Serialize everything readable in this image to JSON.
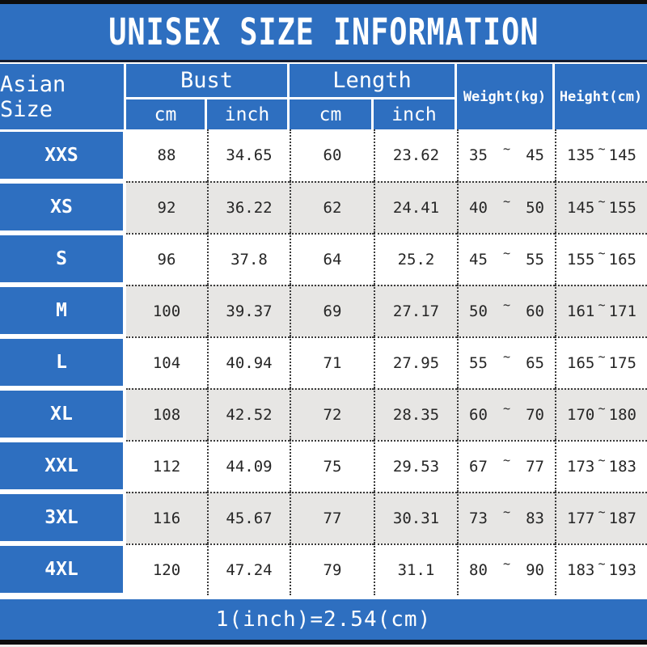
{
  "title": "UNISEX SIZE INFORMATION",
  "header": {
    "corner": "Asian Size",
    "bust": "Bust",
    "length": "Length",
    "unit_cm": "cm",
    "unit_inch": "inch",
    "weight": "Weight(kg)",
    "height": "Height(cm)"
  },
  "sym": {
    "tilde": "~"
  },
  "rows": [
    {
      "size": "XXS",
      "bust_cm": "88",
      "bust_inch": "34.65",
      "length_cm": "60",
      "length_inch": "23.62",
      "weight_min": "35",
      "weight_max": "45",
      "height_min": "135",
      "height_max": "145"
    },
    {
      "size": "XS",
      "bust_cm": "92",
      "bust_inch": "36.22",
      "length_cm": "62",
      "length_inch": "24.41",
      "weight_min": "40",
      "weight_max": "50",
      "height_min": "145",
      "height_max": "155"
    },
    {
      "size": "S",
      "bust_cm": "96",
      "bust_inch": "37.8",
      "length_cm": "64",
      "length_inch": "25.2",
      "weight_min": "45",
      "weight_max": "55",
      "height_min": "155",
      "height_max": "165"
    },
    {
      "size": "M",
      "bust_cm": "100",
      "bust_inch": "39.37",
      "length_cm": "69",
      "length_inch": "27.17",
      "weight_min": "50",
      "weight_max": "60",
      "height_min": "161",
      "height_max": "171"
    },
    {
      "size": "L",
      "bust_cm": "104",
      "bust_inch": "40.94",
      "length_cm": "71",
      "length_inch": "27.95",
      "weight_min": "55",
      "weight_max": "65",
      "height_min": "165",
      "height_max": "175"
    },
    {
      "size": "XL",
      "bust_cm": "108",
      "bust_inch": "42.52",
      "length_cm": "72",
      "length_inch": "28.35",
      "weight_min": "60",
      "weight_max": "70",
      "height_min": "170",
      "height_max": "180"
    },
    {
      "size": "XXL",
      "bust_cm": "112",
      "bust_inch": "44.09",
      "length_cm": "75",
      "length_inch": "29.53",
      "weight_min": "67",
      "weight_max": "77",
      "height_min": "173",
      "height_max": "183"
    },
    {
      "size": "3XL",
      "bust_cm": "116",
      "bust_inch": "45.67",
      "length_cm": "77",
      "length_inch": "30.31",
      "weight_min": "73",
      "weight_max": "83",
      "height_min": "177",
      "height_max": "187"
    },
    {
      "size": "4XL",
      "bust_cm": "120",
      "bust_inch": "47.24",
      "length_cm": "79",
      "length_inch": "31.1",
      "weight_min": "80",
      "weight_max": "90",
      "height_min": "183",
      "height_max": "193"
    }
  ],
  "footer_note": "1(inch)=2.54(cm)",
  "colors": {
    "blue": "#2e6fc0",
    "alt_row": "#e7e6e4",
    "top_bottom_bar": "#0d0d0d",
    "dotted_border": "#3a3a3a",
    "text_dark": "#262626",
    "text_light": "#ffffff"
  },
  "chart_data": {
    "type": "table",
    "title": "UNISEX SIZE INFORMATION",
    "columns": [
      "Asian Size",
      "Bust cm",
      "Bust inch",
      "Length cm",
      "Length inch",
      "Weight(kg)",
      "Height(cm)"
    ],
    "rows": [
      [
        "XXS",
        88,
        34.65,
        60,
        23.62,
        "35~45",
        "135~145"
      ],
      [
        "XS",
        92,
        36.22,
        62,
        24.41,
        "40~50",
        "145~155"
      ],
      [
        "S",
        96,
        37.8,
        64,
        25.2,
        "45~55",
        "155~165"
      ],
      [
        "M",
        100,
        39.37,
        69,
        27.17,
        "50~60",
        "161~171"
      ],
      [
        "L",
        104,
        40.94,
        71,
        27.95,
        "55~65",
        "165~175"
      ],
      [
        "XL",
        108,
        42.52,
        72,
        28.35,
        "60~70",
        "170~180"
      ],
      [
        "XXL",
        112,
        44.09,
        75,
        29.53,
        "67~77",
        "173~183"
      ],
      [
        "3XL",
        116,
        45.67,
        77,
        30.31,
        "73~83",
        "177~187"
      ],
      [
        "4XL",
        120,
        47.24,
        79,
        31.1,
        "80~90",
        "183~193"
      ]
    ],
    "note": "1(inch)=2.54(cm)"
  }
}
